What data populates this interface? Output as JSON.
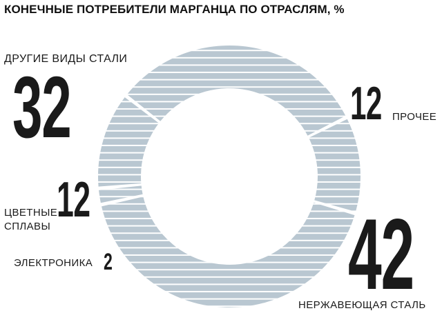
{
  "title": "КОНЕЧНЫЕ ПОТРЕБИТЕЛИ МАРГАНЦА ПО ОТРАСЛЯМ, %",
  "colors": {
    "ring_fill": "#b9c7d1",
    "stripe": "#ffffff",
    "text": "#1a1a1a"
  },
  "chart_data": {
    "type": "pie",
    "variant": "donut",
    "title": "КОНЕЧНЫЕ ПОТРЕБИТЕЛИ МАРГАНЦА ПО ОТРАСЛЯМ, %",
    "unit": "%",
    "legend": "none",
    "slices": [
      {
        "label": "ДРУГИЕ ВИДЫ СТАЛИ",
        "value": 32,
        "display": "32"
      },
      {
        "label": "ПРОЧЕЕ",
        "value": 12,
        "display": "12"
      },
      {
        "label": "НЕРЖАВЕЮЩАЯ СТАЛЬ",
        "value": 42,
        "display": "42"
      },
      {
        "label": "ЭЛЕКТРОНИКА",
        "value": 2,
        "display": "2"
      },
      {
        "label": "ЦВЕТНЫЕ СПЛАВЫ",
        "value": 12,
        "display": "12"
      }
    ]
  }
}
